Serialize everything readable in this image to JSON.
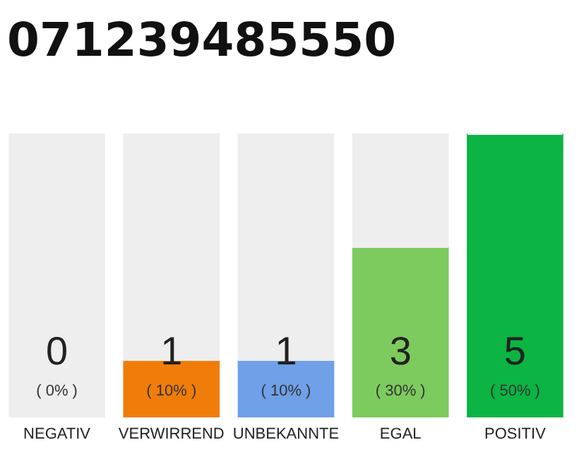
{
  "chart_data": {
    "type": "bar",
    "title": "071239485550",
    "categories": [
      "NEGATIV",
      "VERWIRREND",
      "UNBEKANNTE",
      "EGAL",
      "POSITIV"
    ],
    "stacked": true,
    "series": [
      {
        "colors": [
          "#555555",
          "#f07d0a",
          "#6fa0e8",
          "#7dcb5e",
          "#0cb443"
        ],
        "values": [
          0,
          10,
          10,
          30,
          50
        ],
        "value_labels": [
          "( 0% )",
          "( 10% )",
          "( 10% )",
          "( 30% )",
          "( 50% )"
        ]
      },
      {
        "color": "#eeeeee",
        "values": [
          50,
          40,
          40,
          20,
          0
        ]
      }
    ],
    "annotations": [
      "0",
      "1",
      "1",
      "3",
      "5"
    ],
    "tick_labels": "x"
  }
}
